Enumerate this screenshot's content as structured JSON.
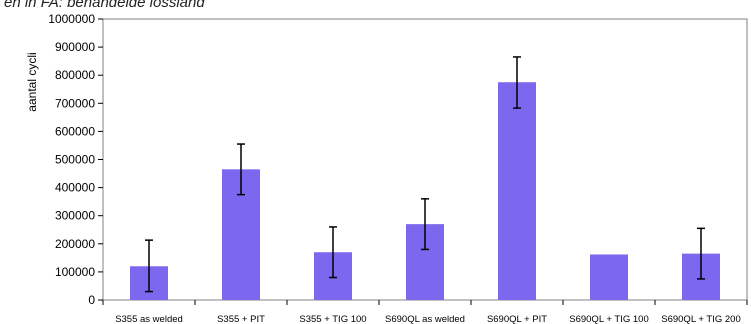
{
  "caption": "en in FA: behandelde lossland",
  "chart_data": {
    "type": "bar",
    "title": "",
    "xlabel": "",
    "ylabel": "aantal cycli",
    "ylim": [
      0,
      1000000
    ],
    "yticks": [
      0,
      100000,
      200000,
      300000,
      400000,
      500000,
      600000,
      700000,
      800000,
      900000,
      1000000
    ],
    "grid": false,
    "bar_color": "#7b68ee",
    "categories": [
      "S355 as welded",
      "S355 + PIT",
      "S355 + TIG 100",
      "S690QL as welded",
      "S690QL + PIT",
      "S690QL + TIG 100",
      "S690QL + TIG 200"
    ],
    "values": [
      120000,
      465000,
      170000,
      270000,
      775000,
      162000,
      165000
    ],
    "error_low": [
      30000,
      375000,
      80000,
      180000,
      683000,
      null,
      75000
    ],
    "error_high": [
      213000,
      555000,
      260000,
      360000,
      865000,
      null,
      255000
    ]
  }
}
